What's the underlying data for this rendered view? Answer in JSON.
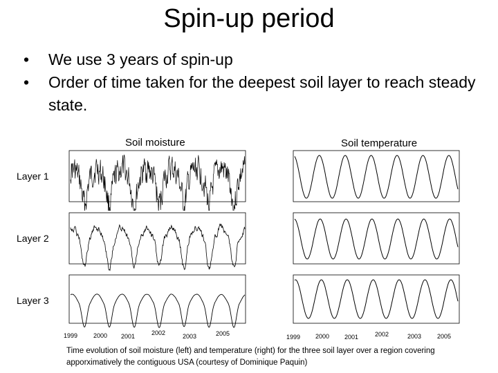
{
  "slide": {
    "title": "Spin-up period",
    "bullets": [
      "We use 3 years of spin-up",
      "Order of time taken for the deepest soil layer to reach steady state."
    ]
  },
  "columns": {
    "left": "Soil moisture",
    "right": "Soil temperature"
  },
  "rows": [
    "Layer 1",
    "Layer 2",
    "Layer 3"
  ],
  "x_axis_years_left": [
    "1999",
    "2000",
    "2001",
    "2002",
    "2003",
    "2005"
  ],
  "x_axis_years_right": [
    "1999",
    "2000",
    "2001",
    "2002",
    "2003",
    "2005"
  ],
  "caption": "Time evolution of soil moisture (left) and temperature (right) for the three soil layer over a region covering apporximatively the contiguous USA (courtesy of Dominique Paquin)"
}
